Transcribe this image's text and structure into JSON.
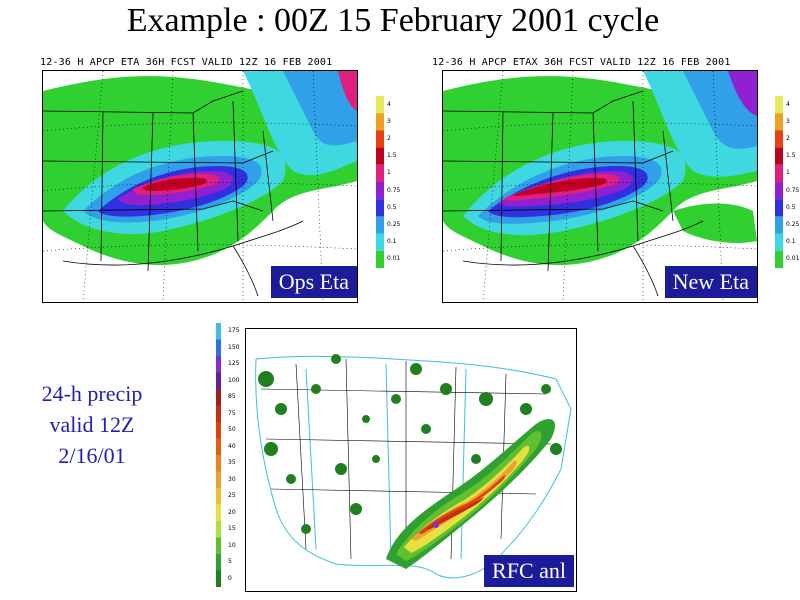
{
  "title": "Example : 00Z 15 February 2001 cycle",
  "panels": {
    "ops": {
      "header": "12-36 H APCP ETA 36H FCST VALID 12Z 16 FEB 2001",
      "tag": "Ops Eta"
    },
    "new": {
      "header": "12-36 H APCP ETAX 36H FCST VALID 12Z 16 FEB 2001",
      "tag": "New Eta"
    },
    "rfc": {
      "tag": "RFC anl"
    }
  },
  "caption": {
    "line1": "24-h precip",
    "line2": "valid 12Z",
    "line3": "2/16/01"
  },
  "forecast_colorbar": {
    "labels": [
      "4",
      "3",
      "2",
      "1.5",
      "1",
      "0.75",
      "0.5",
      "0.25",
      "0.1",
      "0.01"
    ],
    "colors": [
      "#e8e860",
      "#f0a020",
      "#e84010",
      "#c00020",
      "#e02080",
      "#9020d0",
      "#3030e0",
      "#30a0e8",
      "#40d8e0",
      "#30d030"
    ]
  },
  "rfc_colorbar": {
    "labels": [
      "175",
      "150",
      "125",
      "100",
      "85",
      "75",
      "50",
      "40",
      "35",
      "30",
      "25",
      "20",
      "15",
      "10",
      "5",
      "0"
    ],
    "colors": [
      "#40c0e0",
      "#3070e0",
      "#8030d0",
      "#6020a0",
      "#a02020",
      "#c03010",
      "#e04010",
      "#e06010",
      "#f08020",
      "#f0a030",
      "#f0c030",
      "#e8e040",
      "#b0e040",
      "#60c030",
      "#30a030",
      "#208020"
    ]
  }
}
